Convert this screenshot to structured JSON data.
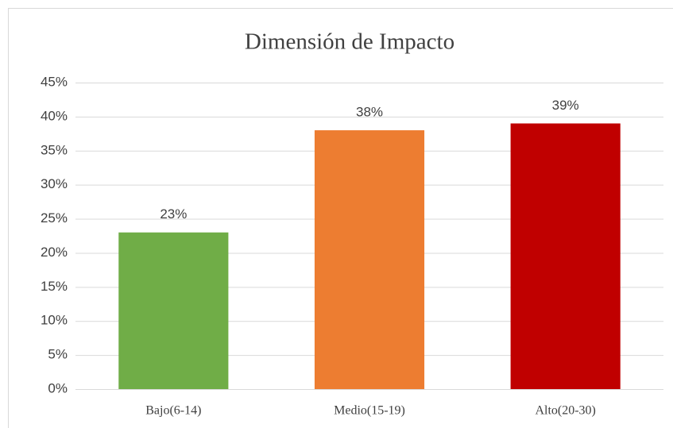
{
  "chart_data": {
    "type": "bar",
    "title": "Dimensión de Impacto",
    "categories": [
      "Bajo(6-14)",
      "Medio(15-19)",
      "Alto(20-30)"
    ],
    "values": [
      23,
      38,
      39
    ],
    "value_labels": [
      "23%",
      "38%",
      "39%"
    ],
    "colors": [
      "#70ad47",
      "#ed7d31",
      "#c00000"
    ],
    "ylim": [
      0,
      45
    ],
    "yticks": [
      {
        "value": 0,
        "label": "0%"
      },
      {
        "value": 5,
        "label": "5%"
      },
      {
        "value": 10,
        "label": "10%"
      },
      {
        "value": 15,
        "label": "15%"
      },
      {
        "value": 20,
        "label": "20%"
      },
      {
        "value": 25,
        "label": "25%"
      },
      {
        "value": 30,
        "label": "30%"
      },
      {
        "value": 35,
        "label": "35%"
      },
      {
        "value": 40,
        "label": "40%"
      },
      {
        "value": 45,
        "label": "45%"
      }
    ],
    "grid": true
  }
}
